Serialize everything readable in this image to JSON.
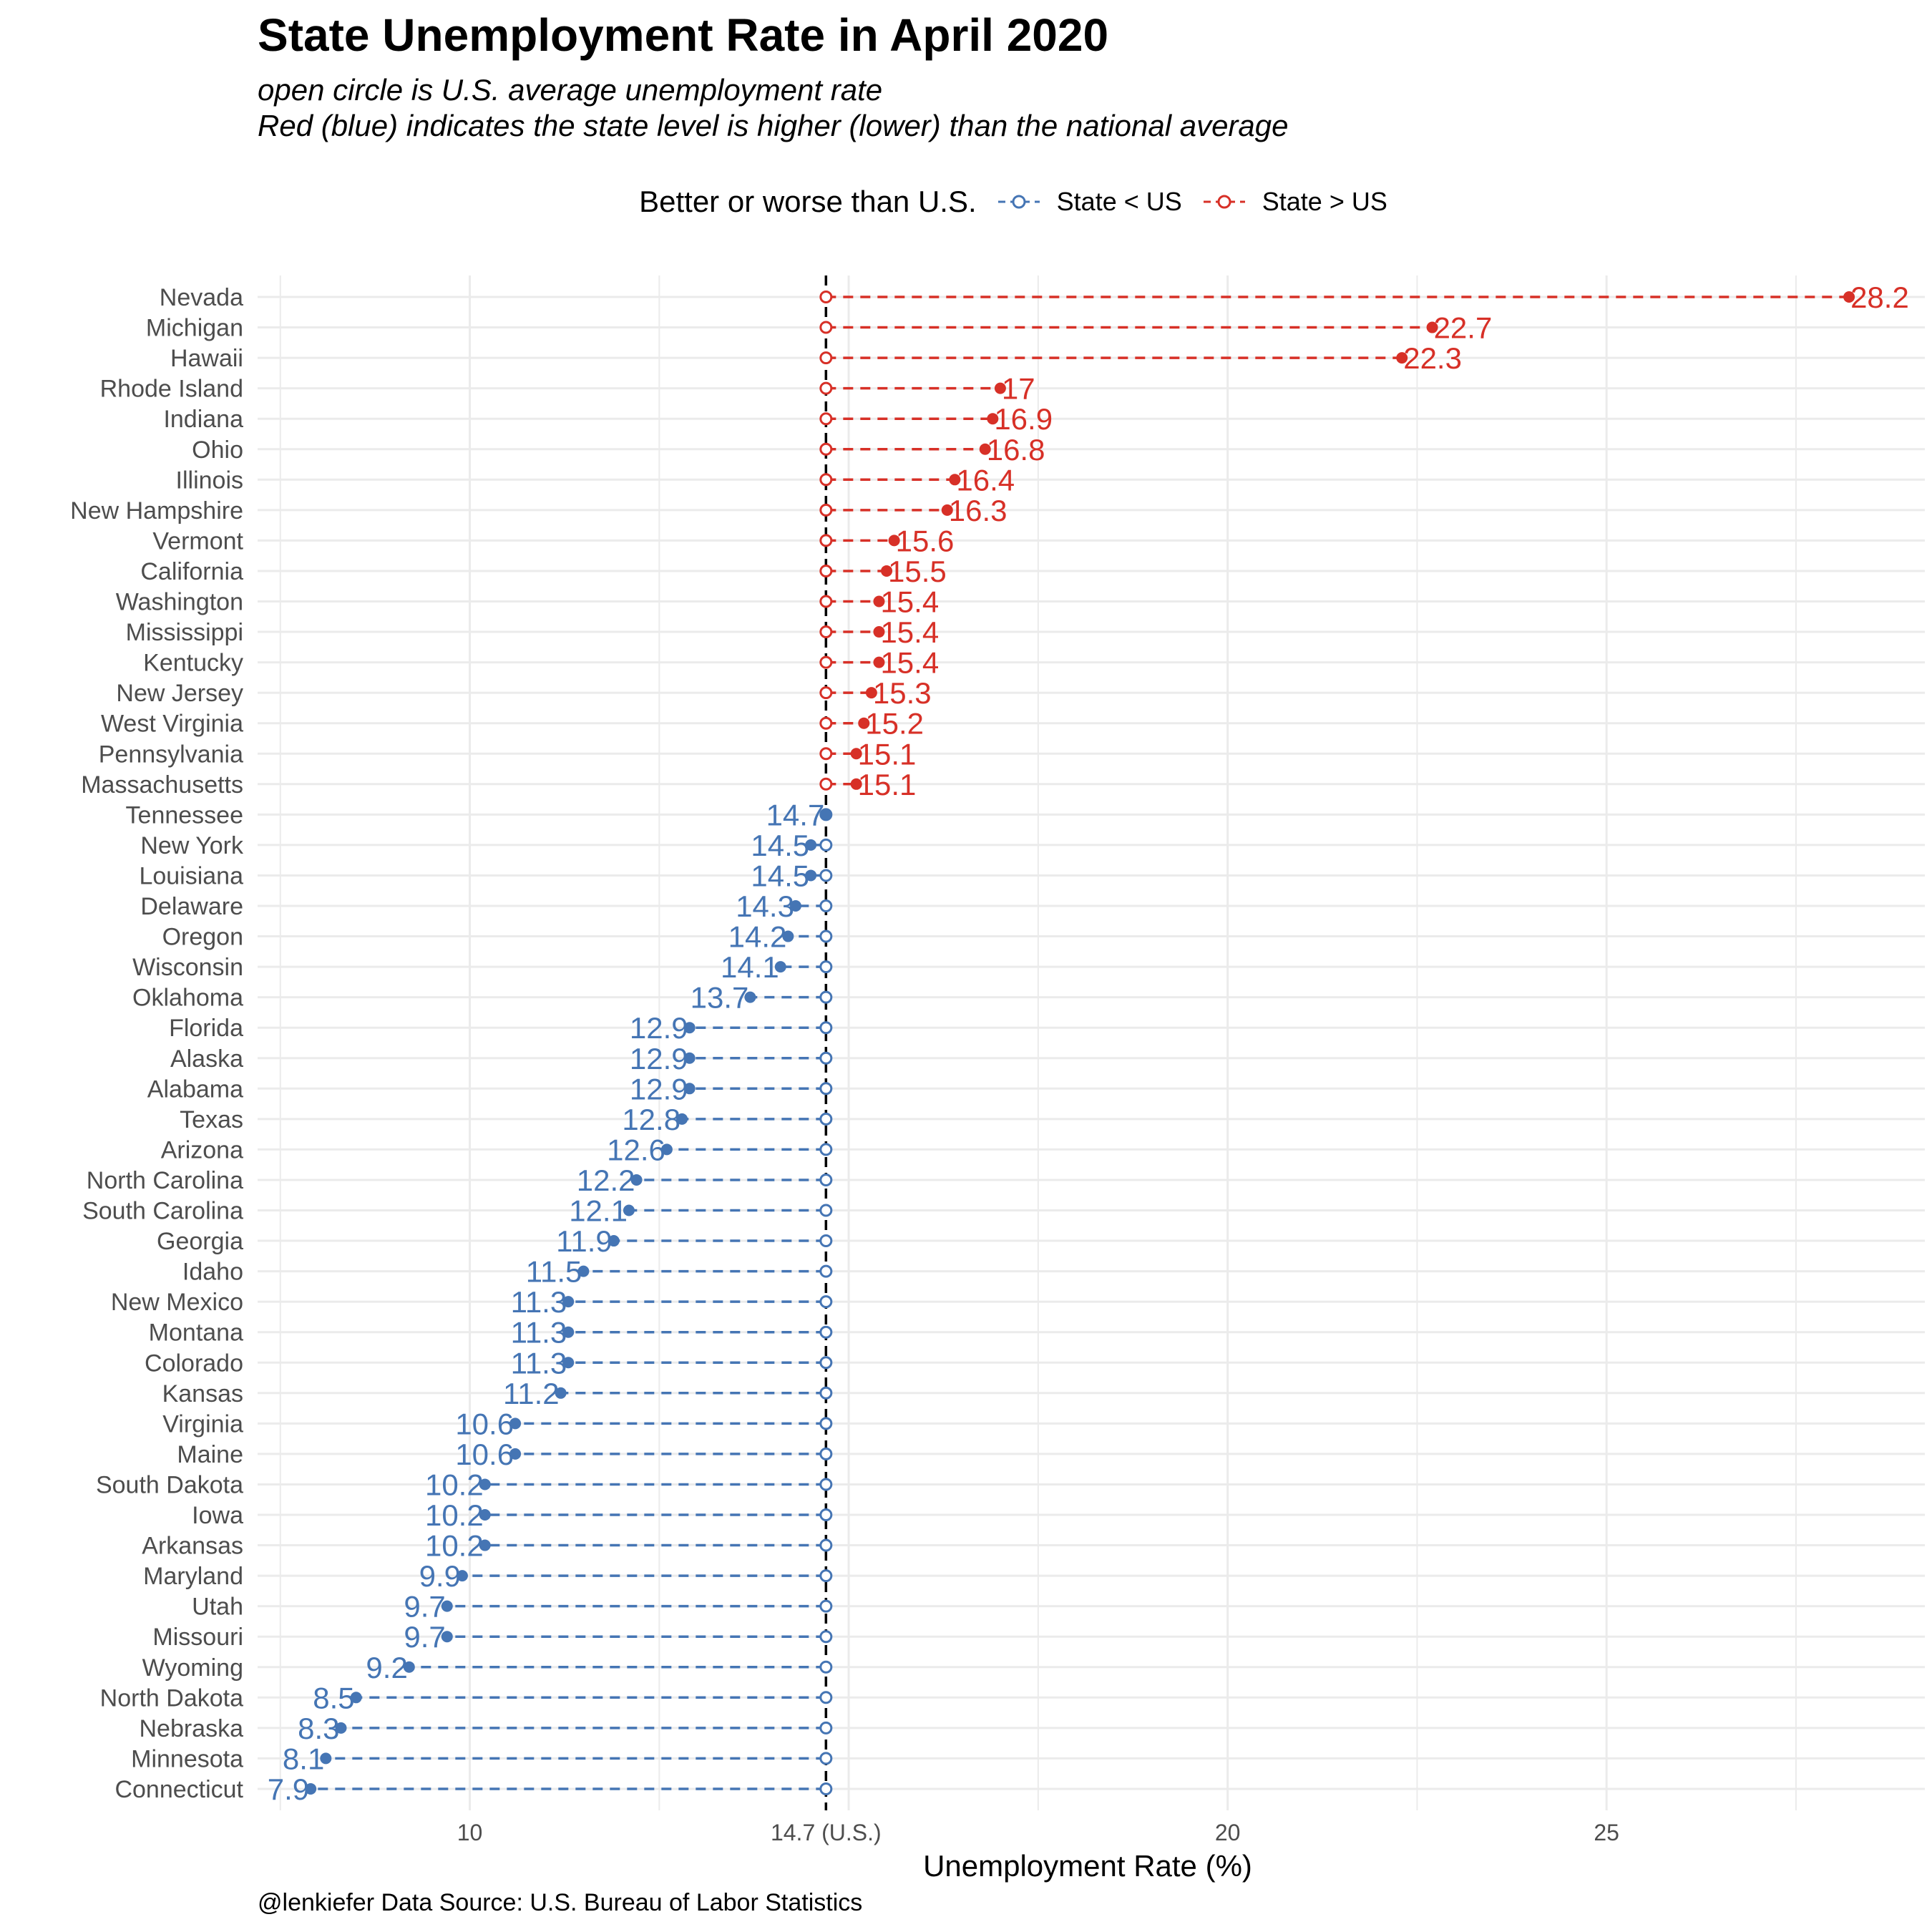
{
  "title": "State Unemployment Rate in April 2020",
  "subtitle_line1": "open circle is U.S. average unemployment rate",
  "subtitle_line2": "Red (blue) indicates the state level is higher (lower) than the national average",
  "legend": {
    "title": "Better or worse than U.S.",
    "items": [
      {
        "label": "State < US",
        "color": "#4575b4"
      },
      {
        "label": "State > US",
        "color": "#d73027"
      }
    ]
  },
  "caption": "@lenkiefer Data Source: U.S. Bureau of Labor Statistics",
  "colors": {
    "above": "#d73027",
    "below": "#4575b4",
    "us_line": "#000000"
  },
  "chart_data": {
    "type": "dot-plot",
    "title": "State Unemployment Rate in April 2020",
    "xlabel": "Unemployment Rate (%)",
    "ylabel": "",
    "us_rate": 14.7,
    "xlim": [
      7.2,
      29.2
    ],
    "x_ticks": [
      {
        "value": 10,
        "label": "10"
      },
      {
        "value": 14.7,
        "label": "14.7 (U.S.)"
      },
      {
        "value": 20,
        "label": "20"
      },
      {
        "value": 25,
        "label": "25"
      }
    ],
    "grid": true,
    "legend_position": "top",
    "series": [
      {
        "name": "State > US",
        "color": "#d73027"
      },
      {
        "name": "State < US",
        "color": "#4575b4"
      }
    ],
    "states": [
      {
        "state": "Nevada",
        "rate": 28.2
      },
      {
        "state": "Michigan",
        "rate": 22.7
      },
      {
        "state": "Hawaii",
        "rate": 22.3
      },
      {
        "state": "Rhode Island",
        "rate": 17
      },
      {
        "state": "Indiana",
        "rate": 16.9
      },
      {
        "state": "Ohio",
        "rate": 16.8
      },
      {
        "state": "Illinois",
        "rate": 16.4
      },
      {
        "state": "New Hampshire",
        "rate": 16.3
      },
      {
        "state": "Vermont",
        "rate": 15.6
      },
      {
        "state": "California",
        "rate": 15.5
      },
      {
        "state": "Washington",
        "rate": 15.4
      },
      {
        "state": "Mississippi",
        "rate": 15.4
      },
      {
        "state": "Kentucky",
        "rate": 15.4
      },
      {
        "state": "New Jersey",
        "rate": 15.3
      },
      {
        "state": "West Virginia",
        "rate": 15.2
      },
      {
        "state": "Pennsylvania",
        "rate": 15.1
      },
      {
        "state": "Massachusetts",
        "rate": 15.1
      },
      {
        "state": "Tennessee",
        "rate": 14.7
      },
      {
        "state": "New York",
        "rate": 14.5
      },
      {
        "state": "Louisiana",
        "rate": 14.5
      },
      {
        "state": "Delaware",
        "rate": 14.3
      },
      {
        "state": "Oregon",
        "rate": 14.2
      },
      {
        "state": "Wisconsin",
        "rate": 14.1
      },
      {
        "state": "Oklahoma",
        "rate": 13.7
      },
      {
        "state": "Florida",
        "rate": 12.9
      },
      {
        "state": "Alaska",
        "rate": 12.9
      },
      {
        "state": "Alabama",
        "rate": 12.9
      },
      {
        "state": "Texas",
        "rate": 12.8
      },
      {
        "state": "Arizona",
        "rate": 12.6
      },
      {
        "state": "North Carolina",
        "rate": 12.2
      },
      {
        "state": "South Carolina",
        "rate": 12.1
      },
      {
        "state": "Georgia",
        "rate": 11.9
      },
      {
        "state": "Idaho",
        "rate": 11.5
      },
      {
        "state": "New Mexico",
        "rate": 11.3
      },
      {
        "state": "Montana",
        "rate": 11.3
      },
      {
        "state": "Colorado",
        "rate": 11.3
      },
      {
        "state": "Kansas",
        "rate": 11.2
      },
      {
        "state": "Virginia",
        "rate": 10.6
      },
      {
        "state": "Maine",
        "rate": 10.6
      },
      {
        "state": "South Dakota",
        "rate": 10.2
      },
      {
        "state": "Iowa",
        "rate": 10.2
      },
      {
        "state": "Arkansas",
        "rate": 10.2
      },
      {
        "state": "Maryland",
        "rate": 9.9
      },
      {
        "state": "Utah",
        "rate": 9.7
      },
      {
        "state": "Missouri",
        "rate": 9.7
      },
      {
        "state": "Wyoming",
        "rate": 9.2
      },
      {
        "state": "North Dakota",
        "rate": 8.5
      },
      {
        "state": "Nebraska",
        "rate": 8.3
      },
      {
        "state": "Minnesota",
        "rate": 8.1
      },
      {
        "state": "Connecticut",
        "rate": 7.9
      }
    ]
  }
}
